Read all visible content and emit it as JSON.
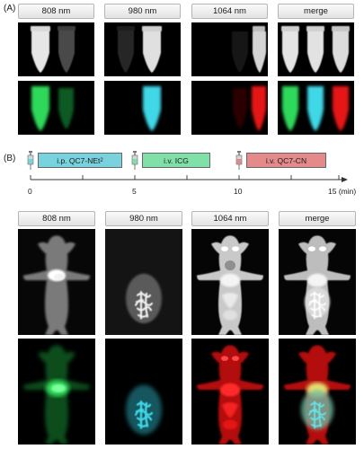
{
  "panel_a": {
    "label": "(A)",
    "headers": [
      "808 nm",
      "980 nm",
      "1064 nm",
      "merge"
    ]
  },
  "panel_b": {
    "label": "(B)",
    "timeline": {
      "injections": [
        "i.p. QC7-NEt",
        "i.v. ICG",
        "i.v. QC7-CN"
      ],
      "first_subscript": "2",
      "ticks": [
        "0",
        "5",
        "10",
        "15 (min)"
      ]
    },
    "headers": [
      "808 nm",
      "980 nm",
      "1064 nm",
      "merge"
    ]
  },
  "colors": {
    "green": "#2fd85a",
    "cyan": "#3fd7e6",
    "red": "#e51616",
    "box_qc7net": "#79d3df",
    "box_icg": "#7fe0a8",
    "box_qc7cn": "#e48a8a"
  }
}
